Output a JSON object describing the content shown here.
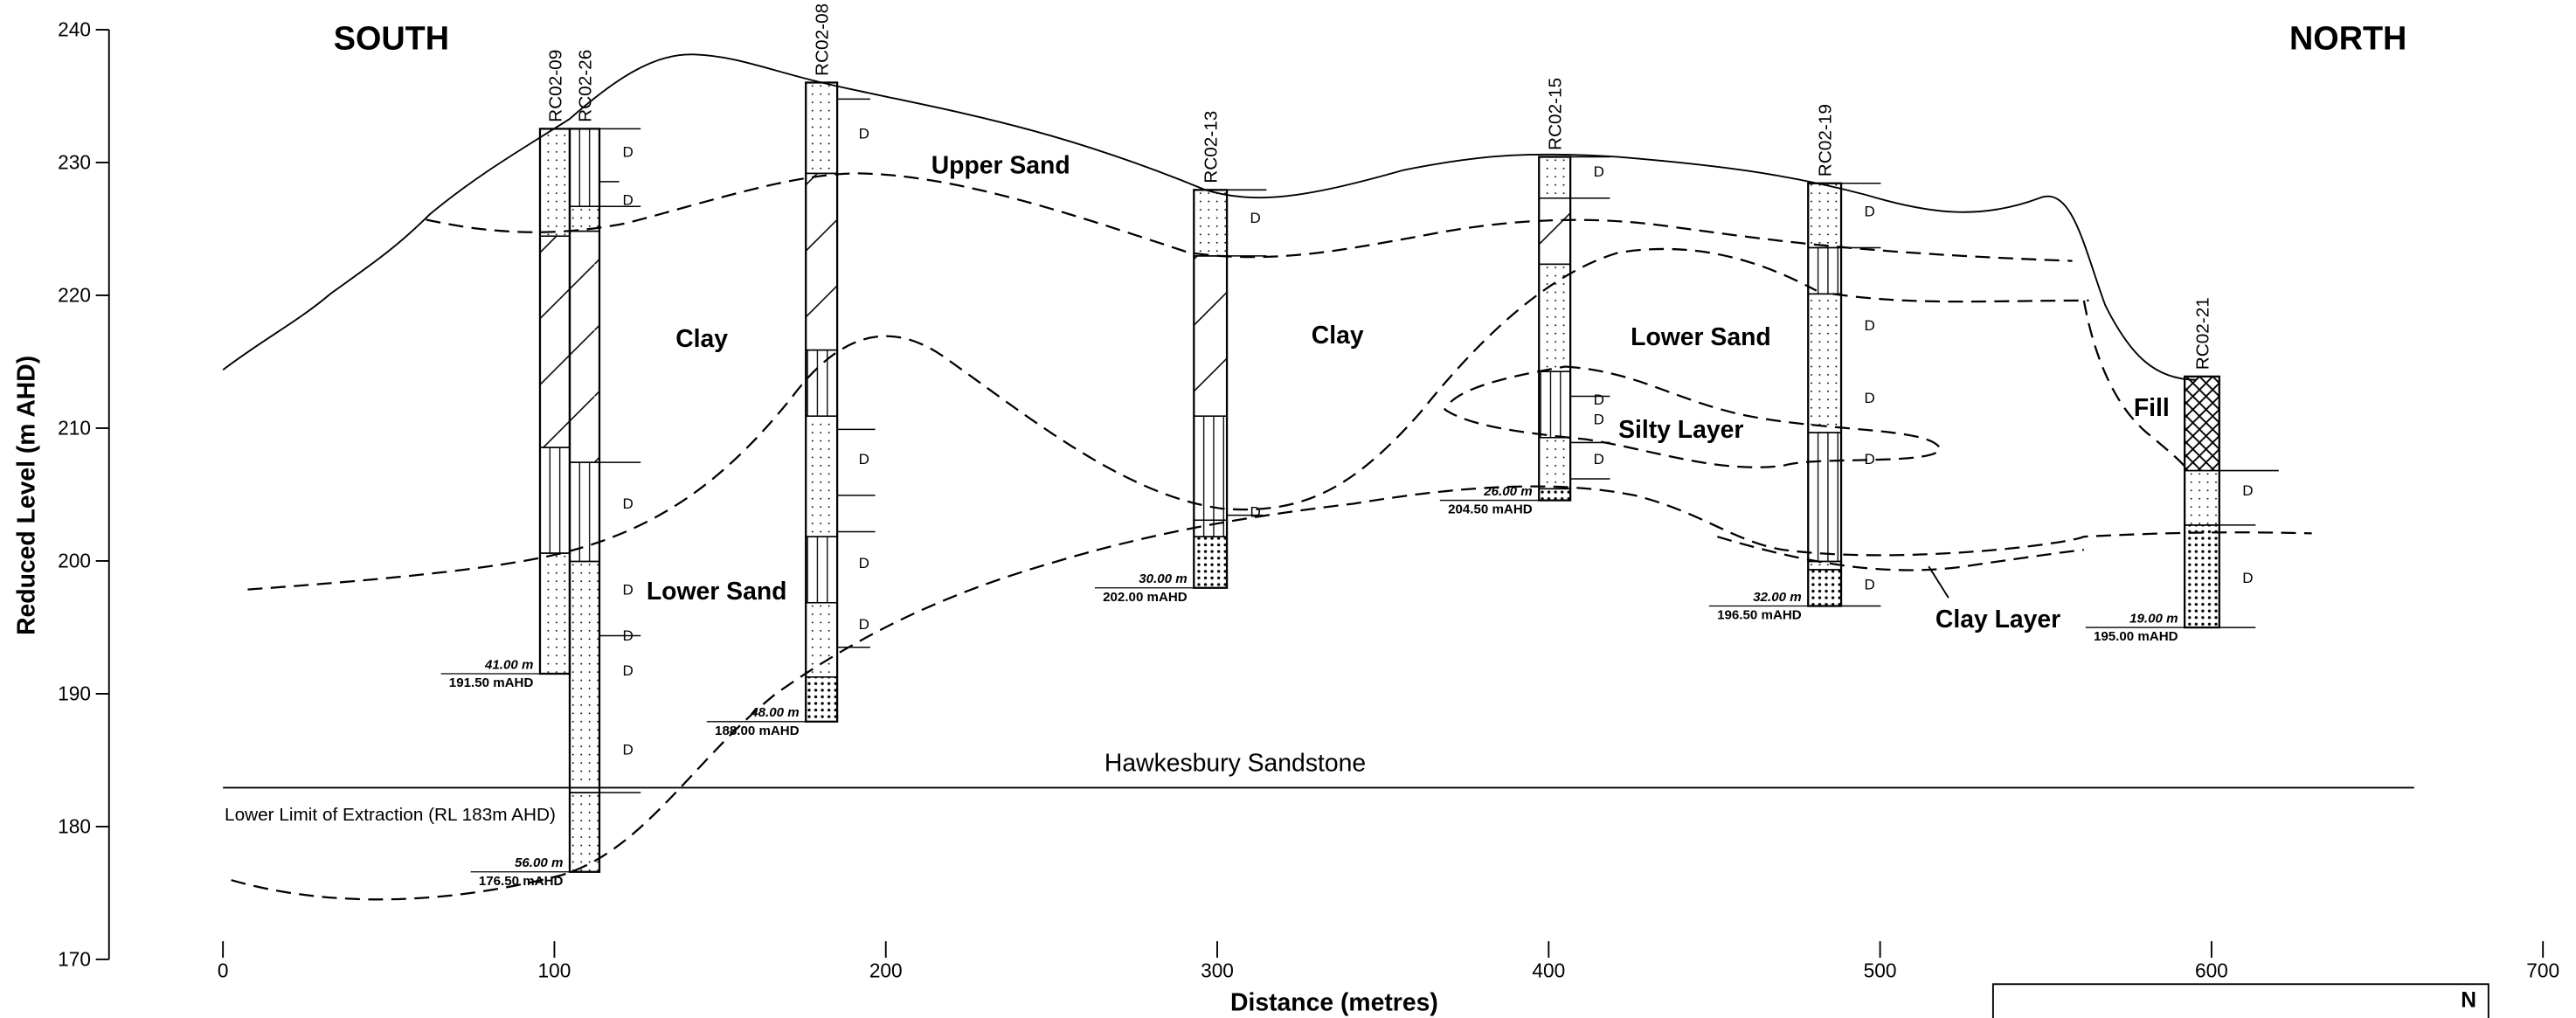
{
  "header": {
    "south": "SOUTH",
    "north": "NORTH"
  },
  "axes": {
    "y_title": "Reduced Level (m AHD)",
    "x_title": "Distance (metres)",
    "yticks": [
      170,
      180,
      190,
      200,
      210,
      220,
      230,
      240
    ],
    "xticks": [
      0,
      100,
      200,
      300,
      400,
      500,
      600,
      700
    ]
  },
  "layers": {
    "upper_sand": "Upper Sand",
    "clay_1": "Clay",
    "clay_2": "Clay",
    "lower_sand_1": "Lower Sand",
    "lower_sand_2": "Lower Sand",
    "silty_layer": "Silty Layer",
    "clay_layer": "Clay Layer",
    "fill": "Fill",
    "sandstone": "Hawkesbury Sandstone",
    "extraction_limit": "Lower Limit of Extraction (RL 183m AHD)"
  },
  "boreholes": [
    {
      "name": "RC02-09",
      "depth": "41.00 m",
      "base": "191.50 mAHD"
    },
    {
      "name": "RC02-26",
      "depth": "56.00 m",
      "base": "176.50 mAHD"
    },
    {
      "name": "RC02-08",
      "depth": "48.00 m",
      "base": "188.00 mAHD"
    },
    {
      "name": "RC02-13",
      "depth": "30.00 m",
      "base": "202.00 mAHD"
    },
    {
      "name": "RC02-15",
      "depth": "26.00 m",
      "base": "204.50 mAHD"
    },
    {
      "name": "RC02-19",
      "depth": "32.00 m",
      "base": "196.50 mAHD"
    },
    {
      "name": "RC02-21",
      "depth": "19.00 m",
      "base": "195.00 mAHD"
    }
  ],
  "log_code": "D",
  "north_arrow": "N"
}
